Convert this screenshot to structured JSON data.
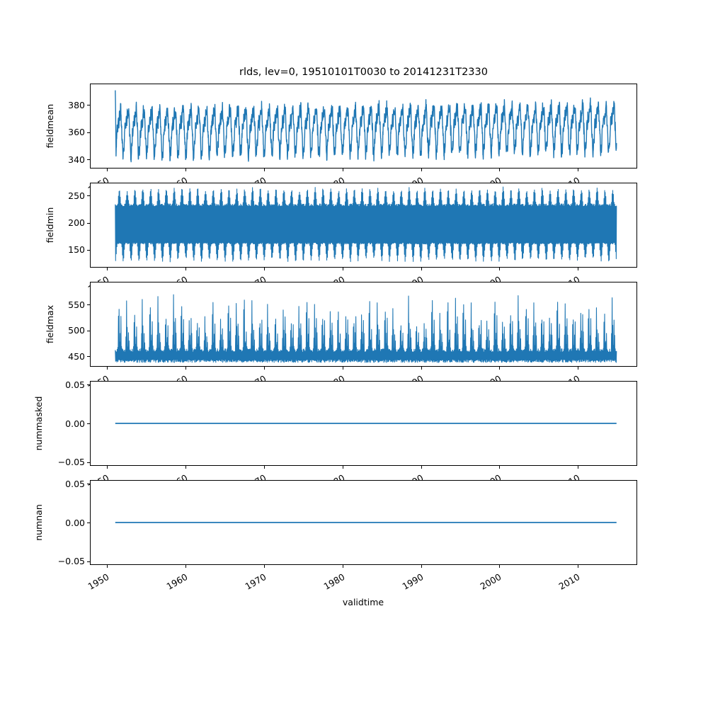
{
  "figure": {
    "background": "#ffffff",
    "spine_color": "#000000",
    "text_color": "#000000"
  },
  "chart_data": {
    "type": "line",
    "title": "rlds, lev=0, 19510101T0030 to 20141231T2330",
    "xlabel": "validtime",
    "grid": false,
    "legend": "none",
    "line_color": "#1f77b4",
    "x_ticks": [
      1950,
      1960,
      1970,
      1980,
      1990,
      2000,
      2010
    ],
    "x_tick_labels": [
      "1950",
      "1960",
      "1970",
      "1980",
      "1990",
      "2000",
      "2010"
    ],
    "xlim": [
      1947.85,
      2017.55
    ],
    "x_data_range": [
      1951.0,
      2015.0
    ],
    "x_tick_rotation_deg": 30,
    "subplots": [
      {
        "name": "fieldmean",
        "ylabel": "fieldmean",
        "ytick_values": [
          340,
          360,
          380
        ],
        "ytick_labels": [
          "340",
          "360",
          "380"
        ],
        "ylim": [
          333.5,
          395.5
        ],
        "observed_range": {
          "min": 337,
          "max": 391,
          "first_value": 391,
          "typical_annual_high": 383,
          "typical_annual_low": 345
        },
        "gen": {
          "kind": "seasonal",
          "base": 361.5,
          "trend_per_year": 0.05,
          "a1": 14,
          "a1_phase": 0.3,
          "a2": 5.5,
          "a2_phase": 0.1,
          "a3": 3.8,
          "noise": 2.8,
          "start_value": 391,
          "step": 0.02,
          "stroke": 1.4
        }
      },
      {
        "name": "fieldmin",
        "ylabel": "fieldmin",
        "ytick_values": [
          150,
          200,
          250
        ],
        "ytick_labels": [
          "150",
          "200",
          "250"
        ],
        "ylim": [
          117,
          274
        ],
        "observed_range": {
          "min": 126,
          "max": 266,
          "upper_envelope": [
            233,
            264
          ],
          "lower_envelope": [
            129,
            166
          ]
        },
        "gen": {
          "kind": "band",
          "upper_base": 233,
          "upper_amp": 29,
          "upper_phase": 0.27,
          "upper_jitter": 2.5,
          "lower_base": 163,
          "lower_amp": 31,
          "lower_phase": 0.77,
          "lower_jitter": 3.0,
          "step": 0.04,
          "stroke": 1.1
        }
      },
      {
        "name": "fieldmax",
        "ylabel": "fieldmax",
        "ytick_values": [
          450,
          500,
          550
        ],
        "ytick_labels": [
          "450",
          "500",
          "550"
        ],
        "ylim": [
          430,
          594
        ],
        "observed_range": {
          "min": 436,
          "max": 585,
          "base_band": [
            438,
            470
          ],
          "typical_spike_height": 545
        },
        "gen": {
          "kind": "spikes",
          "lower_base": 440,
          "upper_base": 457,
          "upper_jit": 7,
          "s1_h": 80,
          "s1_var": 30,
          "s1_phase": 0.45,
          "s1_pow": 7,
          "s2_h": 52,
          "s2_var": 22,
          "s2_phase": 0.7,
          "s2_pow": 10,
          "step": 0.04,
          "stroke": 1.1
        }
      },
      {
        "name": "nummasked",
        "ylabel": "nummasked",
        "ytick_values": [
          -0.05,
          0.0,
          0.05
        ],
        "ytick_labels": [
          "−0.05",
          "0.00",
          "0.05"
        ],
        "ylim": [
          -0.055,
          0.055
        ],
        "observed_range": {
          "min": 0,
          "max": 0,
          "constant_value": 0
        },
        "gen": {
          "kind": "constant",
          "value": 0,
          "stroke": 1.7
        }
      },
      {
        "name": "numnan",
        "ylabel": "numnan",
        "ytick_values": [
          -0.05,
          0.0,
          0.05
        ],
        "ytick_labels": [
          "−0.05",
          "0.00",
          "0.05"
        ],
        "ylim": [
          -0.055,
          0.055
        ],
        "observed_range": {
          "min": 0,
          "max": 0,
          "constant_value": 0
        },
        "gen": {
          "kind": "constant",
          "value": 0,
          "stroke": 1.7
        }
      }
    ]
  }
}
